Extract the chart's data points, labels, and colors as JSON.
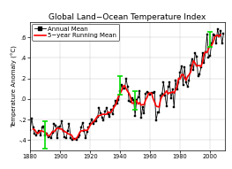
{
  "title": "Global Land−Ocean Temperature Index",
  "ylabel": "Temperature Anomaly (°C)",
  "xlim": [
    1880,
    2010
  ],
  "ylim": [
    -0.5,
    0.75
  ],
  "yticks": [
    -0.4,
    -0.2,
    0.0,
    0.2,
    0.4,
    0.6
  ],
  "ytick_labels": [
    "-.4",
    "-.2",
    ".0",
    ".2",
    ".4",
    ".6"
  ],
  "xticks": [
    1880,
    1900,
    1920,
    1940,
    1960,
    1980,
    2000
  ],
  "annual_color": "black",
  "running_color": "red",
  "errorbar_color": "#00dd00",
  "background_color": "white",
  "years": [
    1880,
    1881,
    1882,
    1883,
    1884,
    1885,
    1886,
    1887,
    1888,
    1889,
    1890,
    1891,
    1892,
    1893,
    1894,
    1895,
    1896,
    1897,
    1898,
    1899,
    1900,
    1901,
    1902,
    1903,
    1904,
    1905,
    1906,
    1907,
    1908,
    1909,
    1910,
    1911,
    1912,
    1913,
    1914,
    1915,
    1916,
    1917,
    1918,
    1919,
    1920,
    1921,
    1922,
    1923,
    1924,
    1925,
    1926,
    1927,
    1928,
    1929,
    1930,
    1931,
    1932,
    1933,
    1934,
    1935,
    1936,
    1937,
    1938,
    1939,
    1940,
    1941,
    1942,
    1943,
    1944,
    1945,
    1946,
    1947,
    1948,
    1949,
    1950,
    1951,
    1952,
    1953,
    1954,
    1955,
    1956,
    1957,
    1958,
    1959,
    1960,
    1961,
    1962,
    1963,
    1964,
    1965,
    1966,
    1967,
    1968,
    1969,
    1970,
    1971,
    1972,
    1973,
    1974,
    1975,
    1976,
    1977,
    1978,
    1979,
    1980,
    1981,
    1982,
    1983,
    1984,
    1985,
    1986,
    1987,
    1988,
    1989,
    1990,
    1991,
    1992,
    1993,
    1994,
    1995,
    1996,
    1997,
    1998,
    1999,
    2000,
    2001,
    2002,
    2003,
    2004,
    2005,
    2006,
    2007,
    2008,
    2009
  ],
  "anomaly": [
    -0.3,
    -0.19,
    -0.28,
    -0.34,
    -0.35,
    -0.33,
    -0.31,
    -0.35,
    -0.28,
    -0.27,
    -0.35,
    -0.34,
    -0.37,
    -0.36,
    -0.38,
    -0.33,
    -0.24,
    -0.26,
    -0.38,
    -0.28,
    -0.27,
    -0.22,
    -0.31,
    -0.37,
    -0.38,
    -0.31,
    -0.24,
    -0.38,
    -0.4,
    -0.39,
    -0.39,
    -0.4,
    -0.37,
    -0.35,
    -0.28,
    -0.23,
    -0.31,
    -0.38,
    -0.32,
    -0.28,
    -0.24,
    -0.2,
    -0.24,
    -0.22,
    -0.22,
    -0.17,
    -0.09,
    -0.14,
    -0.18,
    -0.21,
    -0.12,
    -0.09,
    -0.15,
    -0.17,
    -0.1,
    -0.15,
    -0.07,
    -0.02,
    -0.04,
    -0.01,
    0.08,
    0.14,
    0.1,
    0.1,
    0.2,
    0.12,
    -0.02,
    -0.03,
    0.01,
    -0.01,
    -0.16,
    -0.01,
    0.02,
    0.08,
    -0.18,
    -0.08,
    -0.14,
    0.05,
    0.07,
    0.06,
    0.04,
    0.06,
    0.06,
    0.07,
    -0.21,
    -0.13,
    -0.13,
    0.03,
    0.05,
    0.16,
    0.03,
    -0.07,
    0.12,
    0.16,
    0.01,
    0.09,
    -0.08,
    0.18,
    0.09,
    0.16,
    0.26,
    0.32,
    0.14,
    0.31,
    0.16,
    0.12,
    0.18,
    0.33,
    0.39,
    0.28,
    0.45,
    0.41,
    0.22,
    0.24,
    0.31,
    0.45,
    0.35,
    0.46,
    0.63,
    0.4,
    0.42,
    0.54,
    0.63,
    0.62,
    0.54,
    0.68,
    0.61,
    0.66,
    0.54,
    0.64
  ],
  "error_bars": [
    {
      "year": 1890,
      "val": -0.35,
      "yerr": 0.13
    },
    {
      "year": 1940,
      "val": 0.13,
      "yerr": 0.09
    },
    {
      "year": 1950,
      "val": -0.01,
      "yerr": 0.09
    },
    {
      "year": 2000,
      "val": 0.58,
      "yerr": 0.07
    }
  ],
  "marker_size": 1.8,
  "line_width": 0.6,
  "running_lw": 1.2,
  "title_fontsize": 6.5,
  "label_fontsize": 5.0,
  "tick_fontsize": 4.8,
  "legend_fontsize": 5.0,
  "legend_marker_size": 3
}
